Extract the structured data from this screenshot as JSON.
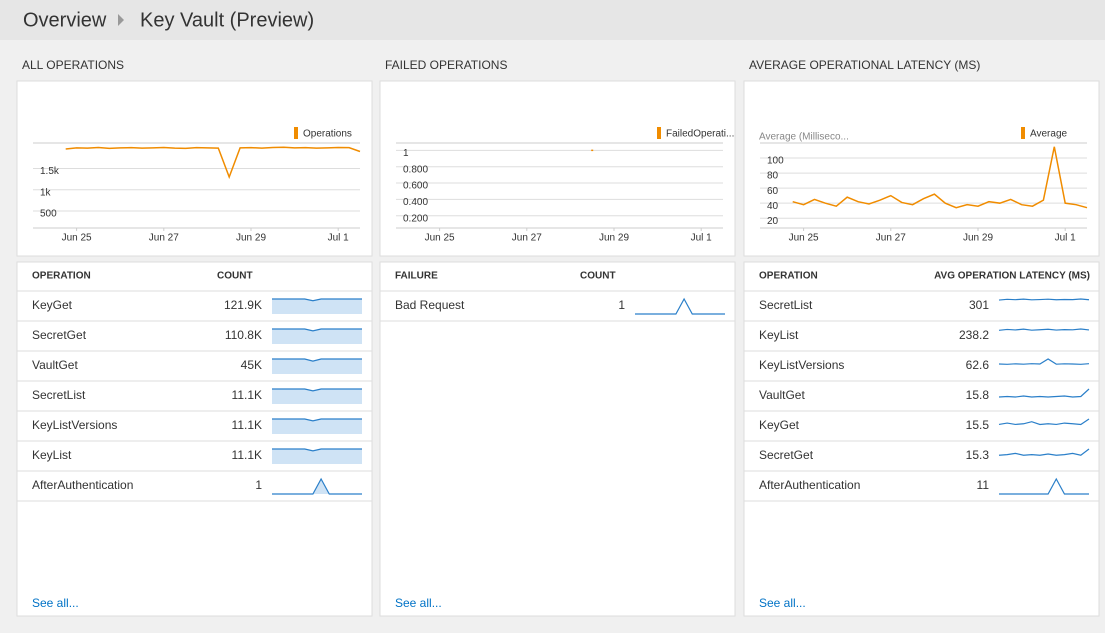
{
  "header": {
    "breadcrumb": [
      "Overview",
      "Key Vault (Preview)"
    ]
  },
  "panels": [
    {
      "title": "ALL OPERATIONS",
      "chart": {
        "type": "line",
        "legend": "Operations",
        "color": "#f08c00",
        "xlim": [
          0,
          7.5
        ],
        "xticks": [
          {
            "value": 1,
            "label": "Jun 25"
          },
          {
            "value": 3,
            "label": "Jun 27"
          },
          {
            "value": 5,
            "label": "Jun 29"
          },
          {
            "value": 7,
            "label": "Jul 1"
          }
        ],
        "ylim": [
          100,
          2100
        ],
        "yticks": [
          {
            "value": 1500,
            "label": "1.5k"
          },
          {
            "value": 1000,
            "label": "1k"
          },
          500
        ],
        "x": [
          0.75,
          1,
          1.25,
          1.5,
          1.75,
          2,
          2.25,
          2.5,
          2.75,
          3,
          3.25,
          3.5,
          3.75,
          4,
          4.25,
          4.5,
          4.75,
          5,
          5.25,
          5.5,
          5.75,
          6,
          6.25,
          6.5,
          6.75,
          7,
          7.25,
          7.5
        ],
        "values": [
          1960,
          1985,
          1980,
          1995,
          1975,
          1985,
          1990,
          1980,
          1985,
          1995,
          1980,
          1975,
          1990,
          1985,
          1980,
          1300,
          1985,
          1990,
          1980,
          1995,
          2000,
          1985,
          1990,
          1980,
          1985,
          1995,
          1990,
          1900
        ]
      },
      "table": {
        "columns": [
          "OPERATION",
          "COUNT"
        ],
        "fill": true,
        "rows": [
          {
            "name": "KeyGet",
            "value": "121.9K",
            "trend": [
              17,
              17,
              17,
              17,
              17,
              15,
              17,
              17,
              17,
              17,
              17,
              17
            ]
          },
          {
            "name": "SecretGet",
            "value": "110.8K",
            "trend": [
              16,
              16,
              16,
              16,
              16,
              14,
              16,
              16,
              16,
              16,
              16,
              16
            ]
          },
          {
            "name": "VaultGet",
            "value": "45K",
            "trend": [
              7,
              7,
              7,
              7,
              7,
              6,
              7,
              7,
              7,
              7,
              7,
              7
            ]
          },
          {
            "name": "SecretList",
            "value": "11.1K",
            "trend": [
              16,
              16,
              16,
              16,
              16,
              14,
              16,
              16,
              16,
              16,
              16,
              16
            ]
          },
          {
            "name": "KeyListVersions",
            "value": "11.1K",
            "trend": [
              16,
              16,
              16,
              16,
              16,
              14,
              16,
              16,
              16,
              16,
              16,
              16
            ]
          },
          {
            "name": "KeyList",
            "value": "11.1K",
            "trend": [
              16,
              16,
              16,
              16,
              16,
              14,
              16,
              16,
              16,
              16,
              16,
              16
            ]
          },
          {
            "name": "AfterAuthentication",
            "value": "1",
            "trend": [
              0,
              0,
              0,
              0,
              0,
              0,
              1,
              0,
              0,
              0,
              0,
              0
            ]
          }
        ]
      },
      "see_all": "See all..."
    },
    {
      "title": "FAILED OPERATIONS",
      "chart": {
        "type": "line",
        "legend": "FailedOperati...",
        "color": "#f08c00",
        "xlim": [
          0,
          7.5
        ],
        "xticks": [
          {
            "value": 1,
            "label": "Jun 25"
          },
          {
            "value": 3,
            "label": "Jun 27"
          },
          {
            "value": 5,
            "label": "Jun 29"
          },
          {
            "value": 7,
            "label": "Jul 1"
          }
        ],
        "ylim": [
          0.05,
          1.09
        ],
        "yticks": [
          1,
          {
            "value": 0.8,
            "label": "0.800"
          },
          {
            "value": 0.6,
            "label": "0.600"
          },
          {
            "value": 0.4,
            "label": "0.400"
          },
          {
            "value": 0.2,
            "label": "0.200"
          }
        ],
        "x": [
          0.75,
          1,
          1.25,
          1.5,
          1.75,
          2,
          2.25,
          2.5,
          2.75,
          3,
          3.25,
          3.5,
          3.75,
          4,
          4.25,
          4.5,
          4.75,
          5,
          5.25,
          5.5,
          5.75,
          6,
          6.25,
          6.5,
          6.75,
          7,
          7.25,
          7.5
        ],
        "values": [
          null,
          null,
          null,
          null,
          null,
          null,
          null,
          null,
          null,
          null,
          null,
          null,
          null,
          null,
          null,
          1,
          null,
          null,
          null,
          null,
          null,
          null,
          null,
          null,
          null,
          null,
          null,
          null
        ]
      },
      "table": {
        "columns": [
          "FAILURE",
          "COUNT"
        ],
        "fill": false,
        "rows": [
          {
            "name": "Bad Request",
            "value": "1",
            "trend": [
              0,
              0,
              0,
              0,
              0,
              0,
              1,
              0,
              0,
              0,
              0,
              0
            ]
          }
        ]
      },
      "see_all": "See all..."
    },
    {
      "title": "AVERAGE OPERATIONAL LATENCY (MS)",
      "chart": {
        "type": "line",
        "legend": "Average",
        "y_label": "Average (Milliseco...",
        "color": "#f08c00",
        "xlim": [
          0,
          7.5
        ],
        "xticks": [
          {
            "value": 1,
            "label": "Jun 25"
          },
          {
            "value": 3,
            "label": "Jun 27"
          },
          {
            "value": 5,
            "label": "Jun 29"
          },
          {
            "value": 7,
            "label": "Jul 1"
          }
        ],
        "ylim": [
          7,
          120
        ],
        "yticks": [
          100,
          80,
          60,
          40,
          20
        ],
        "x": [
          0.75,
          1,
          1.25,
          1.5,
          1.75,
          2,
          2.25,
          2.5,
          2.75,
          3,
          3.25,
          3.5,
          3.75,
          4,
          4.25,
          4.5,
          4.75,
          5,
          5.25,
          5.5,
          5.75,
          6,
          6.25,
          6.5,
          6.75,
          7,
          7.25,
          7.5
        ],
        "values": [
          42,
          38,
          45,
          40,
          36,
          48,
          42,
          39,
          44,
          50,
          41,
          38,
          46,
          52,
          40,
          34,
          38,
          36,
          42,
          40,
          45,
          38,
          36,
          44,
          115,
          40,
          38,
          34
        ]
      },
      "table": {
        "columns": [
          "OPERATION",
          "AVG OPERATION LATENCY (MS)"
        ],
        "fill": false,
        "rows": [
          {
            "name": "SecretList",
            "value": "301",
            "trend": [
              290,
              305,
              298,
              310,
              295,
              300,
              308,
              296,
              302,
              299,
              312,
              297
            ]
          },
          {
            "name": "KeyList",
            "value": "238.2",
            "trend": [
              230,
              245,
              236,
              250,
              232,
              240,
              248,
              234,
              242,
              238,
              252,
              236
            ]
          },
          {
            "name": "KeyListVersions",
            "value": "62.6",
            "trend": [
              60,
              58,
              61,
              59,
              62,
              60,
              90,
              59,
              61,
              60,
              58,
              62
            ]
          },
          {
            "name": "VaultGet",
            "value": "15.8",
            "trend": [
              14,
              15,
              14,
              16,
              14,
              15,
              14,
              15,
              16,
              14,
              15,
              30
            ]
          },
          {
            "name": "KeyGet",
            "value": "15.5",
            "trend": [
              14,
              16,
              14,
              15,
              18,
              14,
              15,
              14,
              16,
              15,
              14,
              22
            ]
          },
          {
            "name": "SecretGet",
            "value": "15.3",
            "trend": [
              14,
              15,
              17,
              14,
              15,
              14,
              16,
              14,
              15,
              17,
              14,
              24
            ]
          },
          {
            "name": "AfterAuthentication",
            "value": "11",
            "trend": [
              0,
              0,
              0,
              0,
              0,
              0,
              0,
              1,
              0,
              0,
              0,
              0
            ]
          }
        ]
      },
      "see_all": "See all..."
    }
  ]
}
